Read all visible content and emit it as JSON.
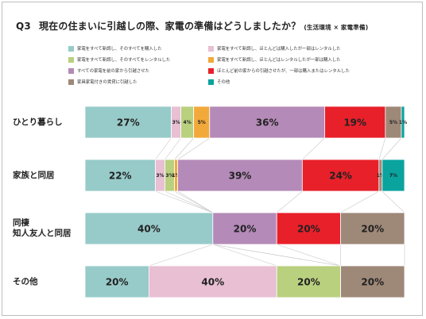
{
  "title": {
    "q": "Q3",
    "main": "現在の住まいに引越しの際、家電の準備はどうしましたか？",
    "sub": "(生活環境 × 家電準備)"
  },
  "colors": {
    "buy_all": "#97cbc9",
    "new_mostly_buy": "#e8bfd3",
    "rent_all": "#b9d07f",
    "new_mostly_rent": "#f2a93b",
    "from_previous": "#b48ab8",
    "previous_some_buy_rent": "#e8202a",
    "furnished": "#9e8878",
    "other": "#0aa39e"
  },
  "legend": [
    {
      "key": "buy_all",
      "label": "家電をすべて新調し、そのすべてを購入した"
    },
    {
      "key": "new_mostly_buy",
      "label": "家電をすべて新調し、ほとんどは購入したが一部はレンタルした"
    },
    {
      "key": "rent_all",
      "label": "家電をすべて新調し、そのすべてをレンタルした"
    },
    {
      "key": "new_mostly_rent",
      "label": "家電をすべて新調し、ほとんどはレンタルしたが一部は購入した"
    },
    {
      "key": "from_previous",
      "label": "すべての家電を前の家から引越させた"
    },
    {
      "key": "previous_some_buy_rent",
      "label": "ほとんど前の家からの引越させたが、一部は購入またはレンタルした"
    },
    {
      "key": "furnished",
      "label": "家具家電付きの賃貸に引越した"
    },
    {
      "key": "other",
      "label": "その他"
    }
  ],
  "chart_data": {
    "type": "bar",
    "orientation": "horizontal-stacked-100",
    "categories": [
      "ひとり暮らし",
      "家族と同居",
      "同棲\n知人友人と同居",
      "その他"
    ],
    "category_lines": [
      [
        "ひとり暮らし"
      ],
      [
        "家族と同居"
      ],
      [
        "同棲",
        "知人友人と同居"
      ],
      [
        "その他"
      ]
    ],
    "series": [
      {
        "key": "buy_all",
        "name": "家電をすべて新調し、そのすべてを購入した",
        "values": [
          27,
          22,
          40,
          20
        ],
        "labels": [
          "27%",
          "22%",
          "40%",
          "20%"
        ]
      },
      {
        "key": "new_mostly_buy",
        "name": "家電をすべて新調し、ほとんどは購入したが一部はレンタルした",
        "values": [
          3,
          3,
          0,
          40
        ],
        "labels": [
          "3%",
          "3%",
          "",
          "40%"
        ]
      },
      {
        "key": "rent_all",
        "name": "家電をすべて新調し、そのすべてをレンタルした",
        "values": [
          4,
          3,
          0,
          20
        ],
        "labels": [
          "4%",
          "3%",
          "",
          "20%"
        ]
      },
      {
        "key": "new_mostly_rent",
        "name": "家電をすべて新調し、ほとんどはレンタルしたが一部は購入した",
        "values": [
          5,
          1,
          0,
          0
        ],
        "labels": [
          "5%",
          "1%",
          "",
          ""
        ]
      },
      {
        "key": "from_previous",
        "name": "すべての家電を前の家から引越させた",
        "values": [
          36,
          39,
          20,
          0
        ],
        "labels": [
          "36%",
          "39%",
          "20%",
          ""
        ]
      },
      {
        "key": "previous_some_buy_rent",
        "name": "ほとんど前の家からの引越させたが、一部は購入またはレンタルした",
        "values": [
          19,
          24,
          20,
          0
        ],
        "labels": [
          "19%",
          "24%",
          "20%",
          ""
        ]
      },
      {
        "key": "furnished",
        "name": "家具家電付きの賃貸に引越した",
        "values": [
          5,
          1,
          20,
          20
        ],
        "labels": [
          "5%",
          "1%",
          "20%",
          "20%"
        ]
      },
      {
        "key": "other",
        "name": "その他",
        "values": [
          1,
          7,
          0,
          0
        ],
        "labels": [
          "1%",
          "7%",
          "",
          ""
        ]
      }
    ],
    "xlim": [
      0,
      100
    ],
    "grid": false,
    "connector_lines": true,
    "legend_position": "top"
  }
}
